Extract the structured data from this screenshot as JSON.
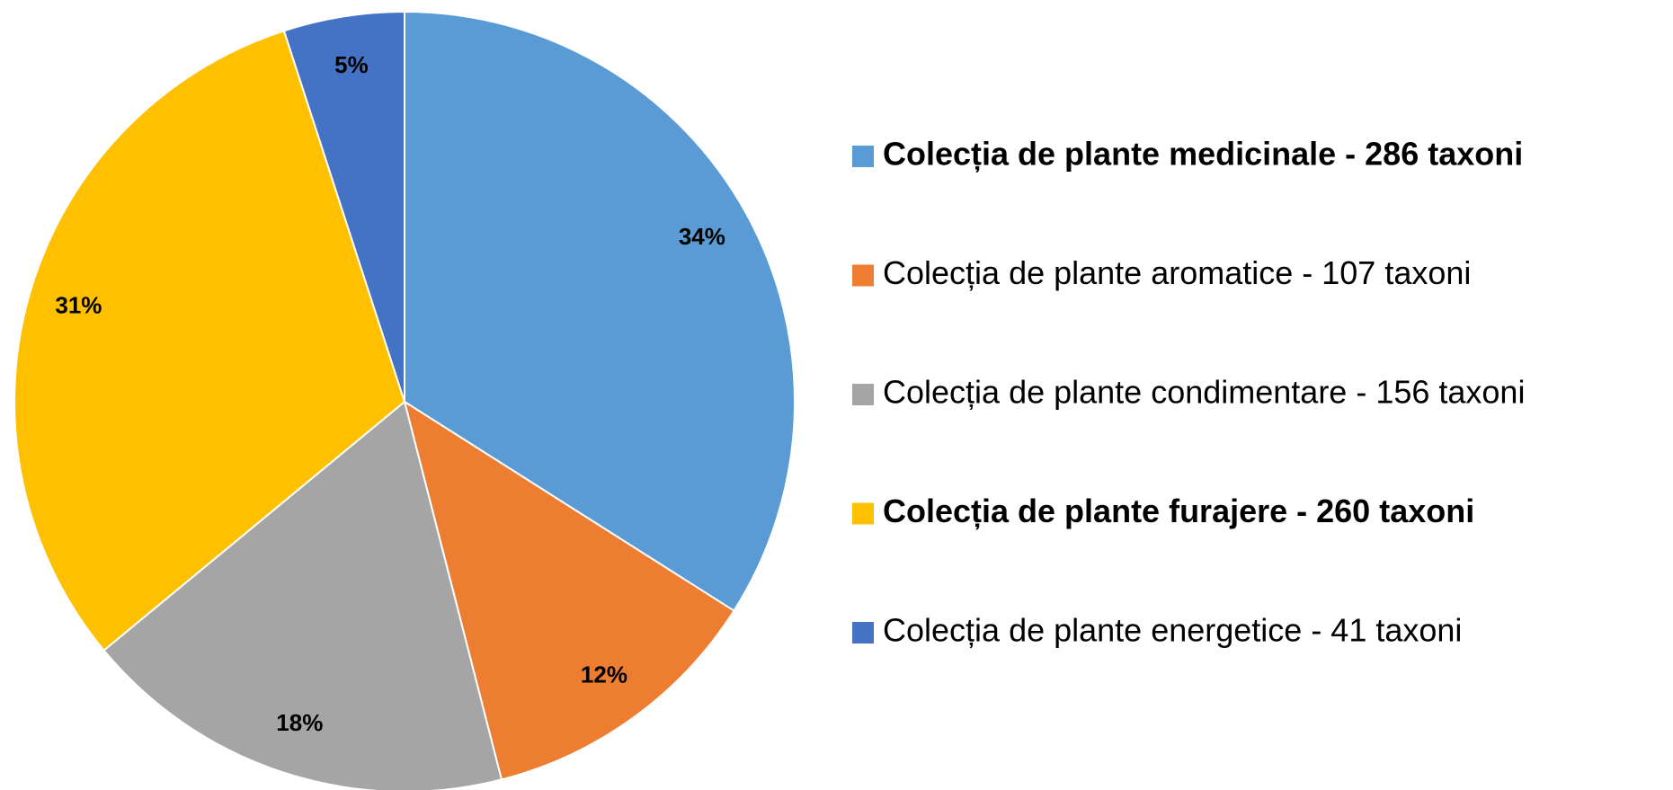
{
  "chart_data": {
    "type": "pie",
    "categories": [
      "Colecția de plante medicinale - 286 taxoni",
      "Colecția de plante aromatice - 107 taxoni",
      "Colecția de plante condimentare - 156 taxoni",
      "Colecția de plante furajere - 260 taxoni",
      "Colecția de plante energetice - 41 taxoni"
    ],
    "values": [
      34,
      12,
      18,
      31,
      5
    ],
    "value_labels": [
      "34%",
      "12%",
      "18%",
      "31%",
      "5%"
    ],
    "colors": [
      "#5b9bd5",
      "#ed7d31",
      "#a5a5a5",
      "#ffc000",
      "#4472c4"
    ],
    "legend_bold": [
      true,
      false,
      false,
      true,
      false
    ],
    "legend": "right"
  }
}
